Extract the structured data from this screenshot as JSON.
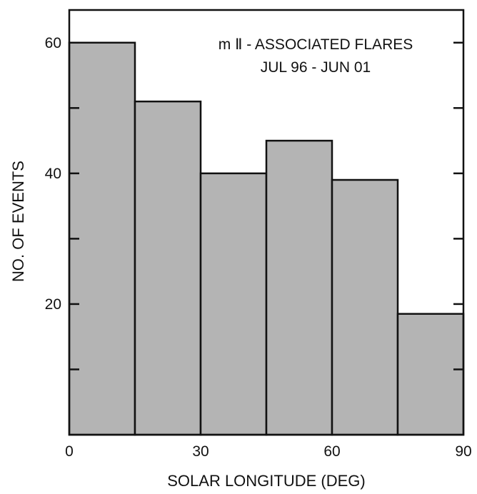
{
  "chart_data": {
    "type": "bar",
    "title_line1": "m Ⅱ - ASSOCIATED FLARES",
    "title_line2": "JUL 96 - JUN 01",
    "xlabel": "SOLAR LONGITUDE (DEG)",
    "ylabel": "NO. OF EVENTS",
    "xlim": [
      0,
      90
    ],
    "ylim": [
      0,
      65
    ],
    "bin_width": 15,
    "bins": [
      {
        "start": 0,
        "end": 15,
        "value": 60
      },
      {
        "start": 15,
        "end": 30,
        "value": 51
      },
      {
        "start": 30,
        "end": 45,
        "value": 40
      },
      {
        "start": 45,
        "end": 60,
        "value": 45
      },
      {
        "start": 60,
        "end": 75,
        "value": 39
      },
      {
        "start": 75,
        "end": 90,
        "value": 18.5
      }
    ],
    "x_ticks": [
      0,
      30,
      60,
      90
    ],
    "x_tick_labels": [
      "0",
      "30",
      "60",
      "90"
    ],
    "y_ticks_major": [
      20,
      40,
      60
    ],
    "y_tick_labels": [
      "20",
      "40",
      "60"
    ],
    "y_ticks_minor": [
      10,
      30,
      50
    ],
    "grid": false,
    "bar_fill": "#b4b4b4",
    "bar_stroke": "#111111"
  }
}
